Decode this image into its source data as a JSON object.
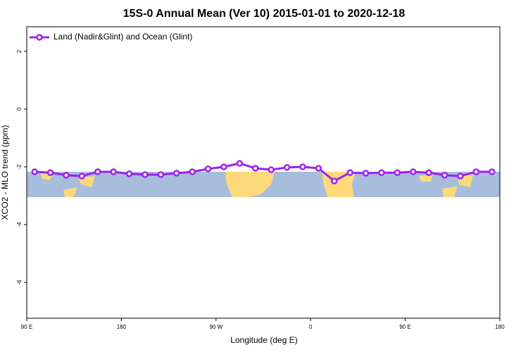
{
  "chart_data": {
    "type": "line",
    "title": "15S-0 Annual Mean (Ver 10)   2015-01-01 to 2020-12-18",
    "x_label": "Longitude (deg E)",
    "y_label": "XCO2 - MLO trend (ppm)",
    "xlim": [
      90,
      540
    ],
    "ylim": [
      -7.24,
      2.85
    ],
    "xticks": [
      {
        "value": 90,
        "label": "90 E"
      },
      180,
      {
        "value": 270,
        "label": "90 W"
      },
      {
        "value": 360,
        "label": "0"
      },
      {
        "value": 450,
        "label": "90 E"
      },
      {
        "value": 540,
        "label": "180"
      }
    ],
    "yticks": [
      2,
      0,
      -2,
      -4,
      -6
    ],
    "legend_position": "upper left",
    "x": [
      97.5,
      112.5,
      127.5,
      142.5,
      157.5,
      172.5,
      187.5,
      202.5,
      217.5,
      232.5,
      247.5,
      262.5,
      277.5,
      292.5,
      307.5,
      322.5,
      337.5,
      352.5,
      367.5,
      382.5,
      397.5,
      412.5,
      427.5,
      442.5,
      457.5,
      472.5,
      487.5,
      502.5,
      517.5,
      532.5
    ],
    "series": [
      {
        "name": "Land (Nadir&Glint) and Ocean (Glint)",
        "color": "#a020f0",
        "values": [
          -2.17,
          -2.2,
          -2.29,
          -2.32,
          -2.17,
          -2.17,
          -2.24,
          -2.27,
          -2.27,
          -2.22,
          -2.17,
          -2.07,
          -2.0,
          -1.88,
          -2.05,
          -2.1,
          -2.02,
          -2.0,
          -2.05,
          -2.49,
          -2.2,
          -2.22,
          -2.2,
          -2.2,
          -2.17,
          -2.2,
          -2.29,
          -2.32,
          -2.17,
          -2.17
        ]
      }
    ]
  }
}
